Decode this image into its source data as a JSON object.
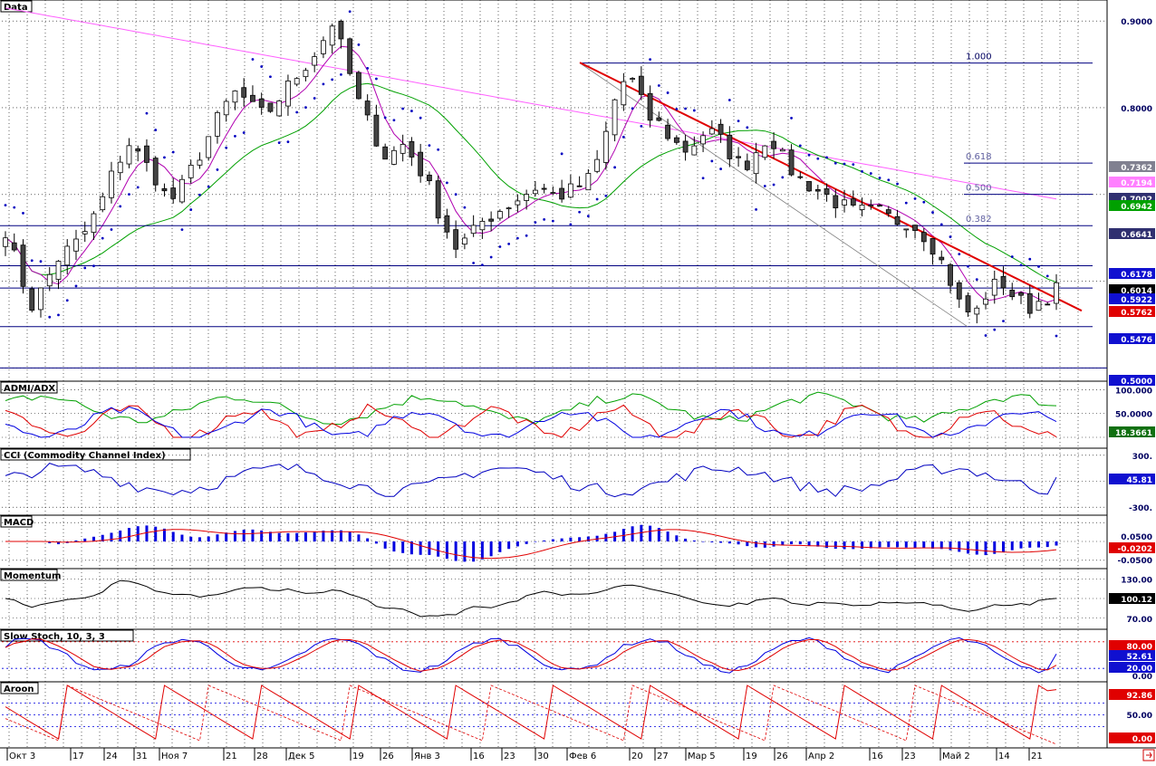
{
  "colors": {
    "grid": "#000000",
    "up": "#ffffff",
    "down": "#444444",
    "sar": "#0000c0",
    "ma_fast": "#b000b0",
    "ma_mid": "#00a000",
    "ma_slow": "#ff60ff",
    "trend": "#e00000",
    "hline": "#000080",
    "fib": "#6060a0"
  },
  "panels": [
    {
      "key": "price",
      "title": "Data"
    },
    {
      "key": "adx",
      "title": "ADMI/ADX"
    },
    {
      "key": "cci",
      "title": "CCI (Commodity Channel Index)"
    },
    {
      "key": "macd",
      "title": "MACD"
    },
    {
      "key": "mom",
      "title": "Momentum"
    },
    {
      "key": "stoch",
      "title": "Slow Stoch, 10, 3, 3"
    },
    {
      "key": "aroon",
      "title": "Aroon"
    }
  ],
  "x_labels": [
    "Окт 3",
    "17",
    "24",
    "31",
    "Ноя 7",
    "21",
    "28",
    "Дек 5",
    "19",
    "26",
    "Янв 3",
    "16",
    "23",
    "30",
    "Фев 6",
    "20",
    "27",
    "Мар 5",
    "19",
    "26",
    "Апр 2",
    "16",
    "23",
    "Май 2",
    "14",
    "21"
  ],
  "fib_labels": [
    "1.000",
    "0.618",
    "0.500",
    "0.382"
  ],
  "axis_labels": {
    "price": [
      "0.9000",
      "0.8000"
    ],
    "adx": [
      "100.000",
      "50.0000",
      "0.0000"
    ],
    "cci": [
      "300.",
      "-300."
    ],
    "macd": [
      "0.0500",
      "-0.0500"
    ],
    "mom": [
      "130.00",
      "70.00"
    ],
    "stoch": [
      "0.00"
    ],
    "aroon": [
      "50.00"
    ]
  },
  "last_values": {
    "price": [
      {
        "text": "0.7362",
        "bg": "#808090",
        "fg": "#ffffff"
      },
      {
        "text": "0.7194",
        "bg": "#ff80ff",
        "fg": "#ffffff"
      },
      {
        "text": "0.7002",
        "bg": "#303070",
        "fg": "#ffffff"
      },
      {
        "text": "0.6942",
        "bg": "#00a000",
        "fg": "#ffffff"
      },
      {
        "text": "0.6641",
        "bg": "#303070",
        "fg": "#ffffff"
      },
      {
        "text": "0.6178",
        "bg": "#1010d0",
        "fg": "#ffffff"
      },
      {
        "text": "0.6014",
        "bg": "#000000",
        "fg": "#ffffff"
      },
      {
        "text": "0.5922",
        "bg": "#1010d0",
        "fg": "#ffffff"
      },
      {
        "text": "0.5762",
        "bg": "#e00000",
        "fg": "#ffffff"
      },
      {
        "text": "0.5476",
        "bg": "#1010d0",
        "fg": "#ffffff"
      },
      {
        "text": "0.5000",
        "bg": "#1010d0",
        "fg": "#ffffff"
      }
    ],
    "adx": {
      "text": "18.3661",
      "bg": "#107010",
      "fg": "#ffffff"
    },
    "cci": {
      "text": "45.81",
      "bg": "#1010d0",
      "fg": "#ffffff"
    },
    "macd": {
      "text": "-0.0202",
      "bg": "#e00000",
      "fg": "#ffffff"
    },
    "mom": {
      "text": "100.12",
      "bg": "#000000",
      "fg": "#ffffff"
    },
    "stoch": [
      {
        "text": "80.00",
        "bg": "#e00000",
        "fg": "#ffffff"
      },
      {
        "text": "52.61",
        "bg": "#1010d0",
        "fg": "#ffffff"
      },
      {
        "text": "20.00",
        "bg": "#1010d0",
        "fg": "#ffffff"
      }
    ],
    "aroon": [
      {
        "text": "92.86",
        "bg": "#e00000",
        "fg": "#ffffff"
      },
      {
        "text": "0.00",
        "bg": "#e00000",
        "fg": "#ffffff"
      }
    ]
  },
  "chart_data": {
    "type": "line",
    "title": "",
    "x_dates": [
      "Окт 3",
      "17",
      "24",
      "31",
      "Ноя 7",
      "21",
      "28",
      "Дек 5",
      "19",
      "26",
      "Янв 3",
      "16",
      "23",
      "30",
      "Фев 6",
      "20",
      "27",
      "Мар 5",
      "19",
      "26",
      "Апр 2",
      "16",
      "23",
      "Май 2",
      "14",
      "21"
    ],
    "price": {
      "ylim": [
        0.49,
        0.92
      ],
      "close_series": [
        0.66,
        0.61,
        0.57,
        0.6,
        0.63,
        0.64,
        0.66,
        0.69,
        0.73,
        0.76,
        0.74,
        0.72,
        0.69,
        0.71,
        0.74,
        0.77,
        0.8,
        0.82,
        0.8,
        0.79,
        0.81,
        0.83,
        0.85,
        0.87,
        0.9,
        0.85,
        0.8,
        0.77,
        0.74,
        0.76,
        0.74,
        0.71,
        0.67,
        0.64,
        0.65,
        0.67,
        0.68,
        0.69,
        0.7,
        0.71,
        0.7,
        0.7,
        0.71,
        0.72,
        0.77,
        0.83,
        0.83,
        0.79,
        0.78,
        0.76,
        0.75,
        0.77,
        0.77,
        0.75,
        0.73,
        0.75,
        0.77,
        0.74,
        0.72,
        0.71,
        0.7,
        0.69,
        0.68,
        0.68,
        0.68,
        0.67,
        0.67,
        0.66,
        0.64,
        0.61,
        0.57,
        0.56,
        0.59,
        0.6,
        0.58,
        0.57,
        0.58,
        0.59
      ],
      "horizontal_levels": [
        0.8515,
        0.6641,
        0.6178,
        0.5922,
        0.5476,
        0.5
      ],
      "fib_levels": {
        "1.000": 0.8515,
        "0.618": 0.7362,
        "0.500": 0.7002,
        "0.382": 0.6641
      },
      "trendline": {
        "from_date": "Фев 6",
        "from": 0.852,
        "to_date": "21",
        "to": 0.576
      }
    },
    "adx": {
      "ylim": [
        0,
        110
      ],
      "last": 18.3661
    },
    "cci": {
      "ylim": [
        -340,
        340
      ],
      "last": 45.81
    },
    "macd": {
      "ylim": [
        -0.06,
        0.06
      ],
      "last": -0.0202
    },
    "momentum": {
      "ylim": [
        60,
        140
      ],
      "last": 100.12
    },
    "slow_stoch": {
      "ylim": [
        0,
        100
      ],
      "levels": [
        80,
        20
      ],
      "last": 52.61
    },
    "aroon": {
      "ylim": [
        0,
        100
      ],
      "last_up": 92.86,
      "last_down": 0.0
    }
  }
}
